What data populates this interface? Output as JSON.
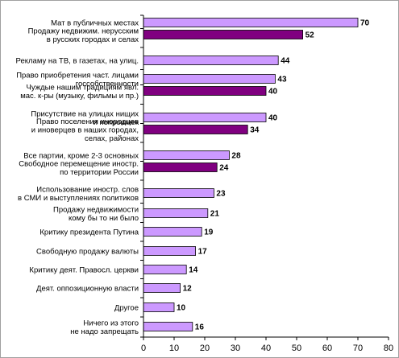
{
  "chart_data": {
    "type": "bar",
    "orientation": "horizontal",
    "title": "",
    "xlabel": "",
    "ylabel": "",
    "xlim": [
      0,
      80
    ],
    "x_ticks": [
      0,
      10,
      20,
      30,
      40,
      50,
      60,
      70,
      80
    ],
    "grid": false,
    "legend": "none",
    "colors": {
      "light": "#cc99ff",
      "dark": "#800080",
      "border": "#000000"
    },
    "bars": [
      {
        "label": [
          "Мат в публичных местах"
        ],
        "value": 70,
        "color": "light"
      },
      {
        "label": [
          "Продажу недвижим. нерусским",
          "в русских городах и селах"
        ],
        "value": 52,
        "color": "dark"
      },
      {
        "label": [
          "Рекламу на ТВ, в газетах, на улиц."
        ],
        "value": 44,
        "color": "light"
      },
      {
        "label": [
          "Право приобретения част. лицами",
          "госсобственности"
        ],
        "value": 43,
        "color": "light"
      },
      {
        "label": [
          "Чуждые нашим традициям явл.",
          "мас. к-ры (музыку, фильмы и пр.)"
        ],
        "value": 40,
        "color": "dark"
      },
      {
        "label": [
          "Присутствие на улицах нищих",
          "и попрошаек"
        ],
        "value": 40,
        "color": "light"
      },
      {
        "label": [
          "Право поселения инородцев",
          "и иноверцев в наших городах,",
          "селах, районах"
        ],
        "value": 34,
        "color": "dark"
      },
      {
        "label": [
          "Все партии, кроме 2-3 основных"
        ],
        "value": 28,
        "color": "light"
      },
      {
        "label": [
          "Свободное перемещение иностр.",
          "по территории России"
        ],
        "value": 24,
        "color": "dark"
      },
      {
        "label": [
          "Использование иностр. слов",
          "в СМИ и выступлениях политиков"
        ],
        "value": 23,
        "color": "light"
      },
      {
        "label": [
          "Продажу недвижимости",
          "кому бы то ни было"
        ],
        "value": 21,
        "color": "light"
      },
      {
        "label": [
          "Критику президента Путина"
        ],
        "value": 19,
        "color": "light"
      },
      {
        "label": [
          "Свободную продажу валюты"
        ],
        "value": 17,
        "color": "light"
      },
      {
        "label": [
          "Критику деят. Правосл. церкви"
        ],
        "value": 14,
        "color": "light"
      },
      {
        "label": [
          "Деят. оппозиционную власти"
        ],
        "value": 12,
        "color": "light"
      },
      {
        "label": [
          "Другое"
        ],
        "value": 10,
        "color": "light"
      },
      {
        "label": [
          "Ничего из этого",
          "не надо запрещать"
        ],
        "value": 16,
        "color": "light"
      }
    ]
  }
}
